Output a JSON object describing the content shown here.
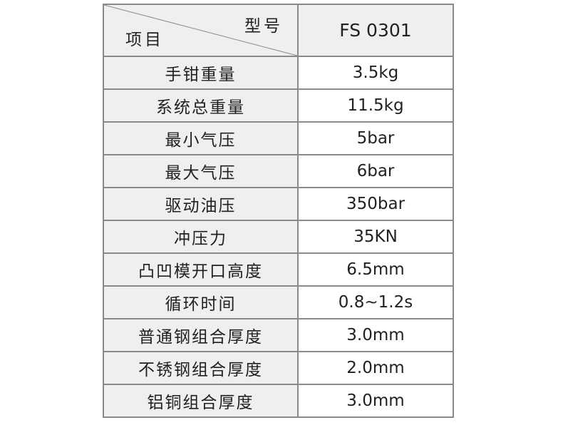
{
  "header": {
    "column_label": "型号",
    "row_label": "项目",
    "model": "FS 0301"
  },
  "rows": [
    {
      "item": "手钳重量",
      "value": "3.5kg"
    },
    {
      "item": "系统总重量",
      "value": "11.5kg"
    },
    {
      "item": "最小气压",
      "value": "5bar"
    },
    {
      "item": "最大气压",
      "value": "6bar"
    },
    {
      "item": "驱动油压",
      "value": "350bar"
    },
    {
      "item": "冲压力",
      "value": "35KN"
    },
    {
      "item": "凸凹模开口高度",
      "value": "6.5mm"
    },
    {
      "item": "循环时间",
      "value": "0.8~1.2s"
    },
    {
      "item": "普通钢组合厚度",
      "value": "3.0mm"
    },
    {
      "item": "不锈钢组合厚度",
      "value": "2.0mm"
    },
    {
      "item": "铝铜组合厚度",
      "value": "3.0mm"
    }
  ]
}
